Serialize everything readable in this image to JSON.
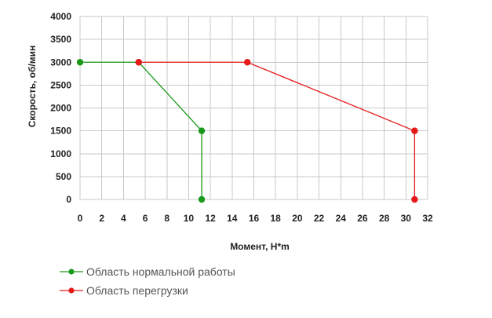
{
  "chart_data": {
    "type": "line",
    "title": "",
    "xlabel": "Момент, Н*m",
    "ylabel": "Скорость, об/мин",
    "xlim": [
      0,
      32
    ],
    "ylim": [
      0,
      4000
    ],
    "x_ticks": [
      0,
      2,
      4,
      6,
      8,
      10,
      12,
      14,
      16,
      18,
      20,
      22,
      24,
      26,
      28,
      30,
      32
    ],
    "y_ticks": [
      0,
      500,
      1000,
      1500,
      2000,
      2500,
      3000,
      3500,
      4000
    ],
    "grid": true,
    "legend_position": "bottom-left",
    "series": [
      {
        "name": "Область нормальной работы",
        "color": "#1a9a1a",
        "points": [
          {
            "x": 0,
            "y": 3000
          },
          {
            "x": 5.4,
            "y": 3000
          },
          {
            "x": 11.2,
            "y": 1500
          },
          {
            "x": 11.2,
            "y": 0
          }
        ]
      },
      {
        "name": "Область перегрузки",
        "color": "#e61919",
        "points": [
          {
            "x": 5.4,
            "y": 3000
          },
          {
            "x": 15.4,
            "y": 3000
          },
          {
            "x": 30.8,
            "y": 1500
          },
          {
            "x": 30.8,
            "y": 0
          }
        ]
      }
    ]
  }
}
